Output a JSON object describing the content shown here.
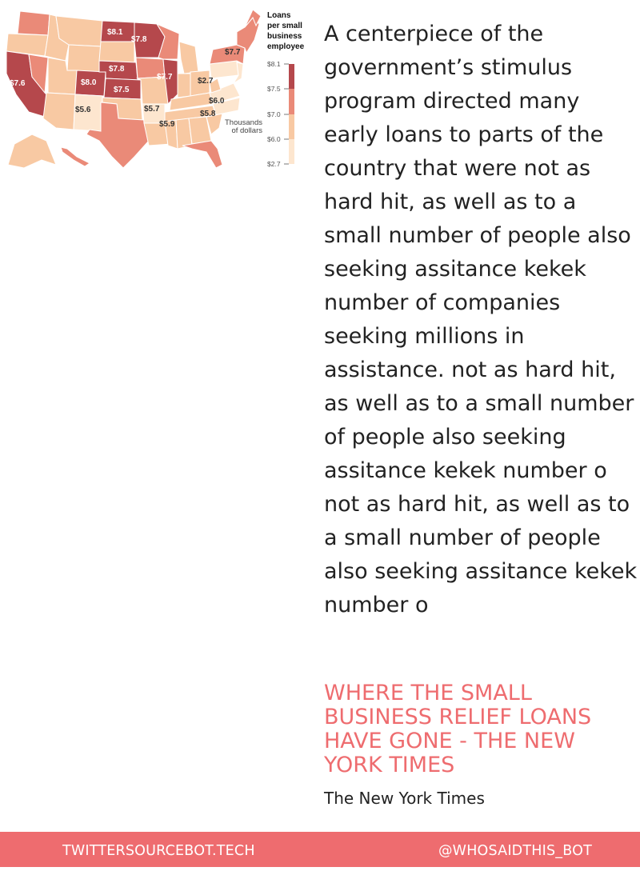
{
  "map": {
    "legend_title_lines": [
      "Loans",
      "per small",
      "business",
      "employee"
    ],
    "legend_ticks": [
      "$8.1",
      "$7.5",
      "$7.0",
      "$6.0",
      "$2.7"
    ],
    "legend_note_lines": [
      "Thousands",
      "of dollars"
    ],
    "legend_colors": [
      "#b5484c",
      "#ea8a78",
      "#f8c9a3",
      "#fde6cf"
    ],
    "state_labels": [
      "$8.1",
      "$7.8",
      "$7.7",
      "$7.8",
      "$8.0",
      "$7.5",
      "$7.7",
      "$2.7",
      "$7.6",
      "$6.0",
      "$5.6",
      "$5.7",
      "$5.8",
      "$5.9"
    ]
  },
  "article": {
    "body": "A centerpiece of the government’s stimulus program directed many early loans to parts of the country that were not as hard hit, as well as to a small number of people also seeking assitance kekek number of companies seeking millions in assistance. not as hard hit, as well as to a small number of people also seeking assitance kekek number o not as hard hit, as well as to a small number of people also seeking assitance kekek number o",
    "headline": "WHERE THE SMALL BUSINESS RELIEF LOANS HAVE GONE - THE NEW YORK TIMES",
    "source": "The New York Times"
  },
  "footer": {
    "site": "TWITTERSOURCEBOT.TECH",
    "handle": "@WHOSAIDTHIS_BOT"
  },
  "colors": {
    "accent": "#ee6c6f",
    "text": "#222222"
  }
}
